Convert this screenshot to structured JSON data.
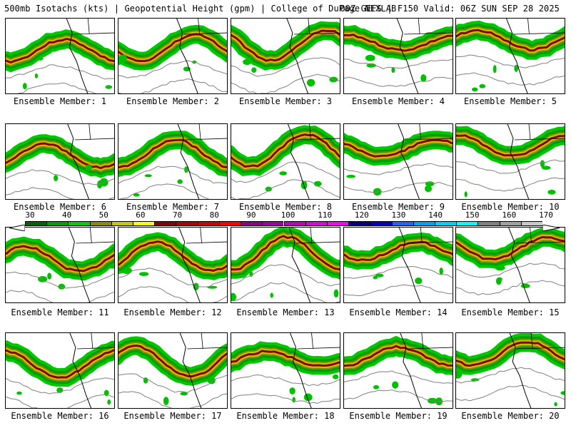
{
  "header": {
    "left_text": "500mb Isotachs (kts) | Geopotential Height (gpm) | College of DuPage NEXLAB",
    "right_text": "00Z GEFS | F150 Valid: 06Z SUN SEP 28 2025"
  },
  "panels": [
    {
      "label": "Ensemble Member: 1"
    },
    {
      "label": "Ensemble Member: 2"
    },
    {
      "label": "Ensemble Member: 3"
    },
    {
      "label": "Ensemble Member: 4"
    },
    {
      "label": "Ensemble Member: 5"
    },
    {
      "label": "Ensemble Member: 6"
    },
    {
      "label": "Ensemble Member: 7"
    },
    {
      "label": "Ensemble Member: 8"
    },
    {
      "label": "Ensemble Member: 9"
    },
    {
      "label": "Ensemble Member: 10"
    },
    {
      "label": "Ensemble Member: 11"
    },
    {
      "label": "Ensemble Member: 12"
    },
    {
      "label": "Ensemble Member: 13"
    },
    {
      "label": "Ensemble Member: 14"
    },
    {
      "label": "Ensemble Member: 15"
    },
    {
      "label": "Ensemble Member: 16"
    },
    {
      "label": "Ensemble Member: 17"
    },
    {
      "label": "Ensemble Member: 18"
    },
    {
      "label": "Ensemble Member: 19"
    },
    {
      "label": "Ensemble Member: 20"
    }
  ],
  "colorbar": {
    "labels": [
      "30",
      "40",
      "50",
      "60",
      "70",
      "80",
      "90",
      "100",
      "110",
      "120",
      "130",
      "140",
      "150",
      "160",
      "170"
    ],
    "colors": [
      "#006400",
      "#00a000",
      "#00d000",
      "#8b8b00",
      "#c8c800",
      "#ffff00",
      "#8b0000",
      "#b00000",
      "#d00000",
      "#ff0000",
      "#8b008b",
      "#a000a0",
      "#c000c0",
      "#e000e0",
      "#ff00ff",
      "#00008b",
      "#0000cd",
      "#1e64ff",
      "#00a0ff",
      "#00d0ff",
      "#00ffff",
      "#808080",
      "#a0a0a0",
      "#c8c8c8"
    ]
  }
}
